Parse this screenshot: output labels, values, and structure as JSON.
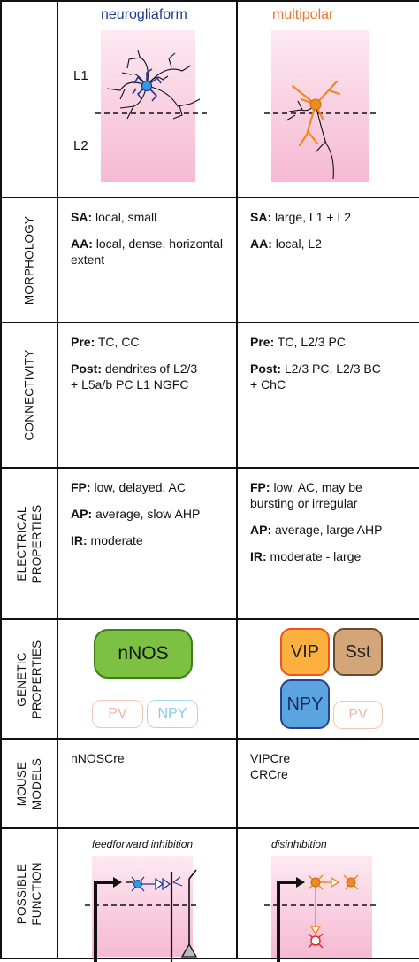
{
  "columns": [
    {
      "title": "neurogliaform",
      "title_color": "#1f3a93"
    },
    {
      "title": "multipolar",
      "title_color": "#e8772e"
    }
  ],
  "layers": {
    "upper": "L1",
    "lower": "L2"
  },
  "rows": {
    "morphology": {
      "label": "MORPHOLOGY",
      "left": [
        {
          "key": "SA:",
          "text": " local, small"
        },
        {
          "key": "AA:",
          "text": " local, dense, horizontal extent"
        }
      ],
      "right": [
        {
          "key": "SA:",
          "text": " large, L1 + L2"
        },
        {
          "key": "AA:",
          "text": "  local, L2"
        }
      ]
    },
    "connectivity": {
      "label": "CONNECTIVITY",
      "left": [
        {
          "key": "Pre:",
          "text": " TC, CC"
        },
        {
          "key": "Post:",
          "text": " dendrites of L2/3 + L5a/b PC L1 NGFC"
        }
      ],
      "right": [
        {
          "key": "Pre:",
          "text": " TC, L2/3 PC"
        },
        {
          "key": "Post:",
          "text": " L2/3 PC, L2/3 BC + ChC"
        }
      ]
    },
    "electrical": {
      "label_line1": "ELECTRICAL",
      "label_line2": "PROPERTIES",
      "left": [
        {
          "key": "FP:",
          "text": " low, delayed, AC"
        },
        {
          "key": "AP:",
          "text": " average, slow AHP"
        },
        {
          "key": "IR:",
          "text": " moderate"
        }
      ],
      "right": [
        {
          "key": "FP:",
          "text": " low, AC, may be bursting or irregular"
        },
        {
          "key": "AP:",
          "text": " average, large AHP"
        },
        {
          "key": "IR:",
          "text": " moderate - large"
        }
      ]
    },
    "genetic": {
      "label_line1": "GENETIC",
      "label_line2": "PROPERTIES",
      "left_main": "nNOS",
      "left_faded": [
        "PV",
        "NPY"
      ],
      "right_main": [
        "VIP",
        "Sst",
        "NPY"
      ],
      "right_faded": "PV"
    },
    "mouse": {
      "label_line1": "MOUSE",
      "label_line2": "MODELS",
      "left": [
        "nNOSCre"
      ],
      "right": [
        "VIPCre",
        "CRCre"
      ]
    },
    "function": {
      "label_line1": "POSSIBLE",
      "label_line2": "FUNCTION",
      "left_title": "feedforward inhibition",
      "right_title": "disinhibition"
    }
  },
  "colors": {
    "ngfc": "#1f3a93",
    "ngfc_soma": "#2f9be0",
    "multipolar": "#f08a1e",
    "nnos_fill": "#7cc142",
    "vip_fill": "#fbb040",
    "sst_fill": "#d2a679",
    "npy_fill": "#5aa4e0",
    "pink": "#f6b9d3",
    "red": "#e8252b"
  }
}
